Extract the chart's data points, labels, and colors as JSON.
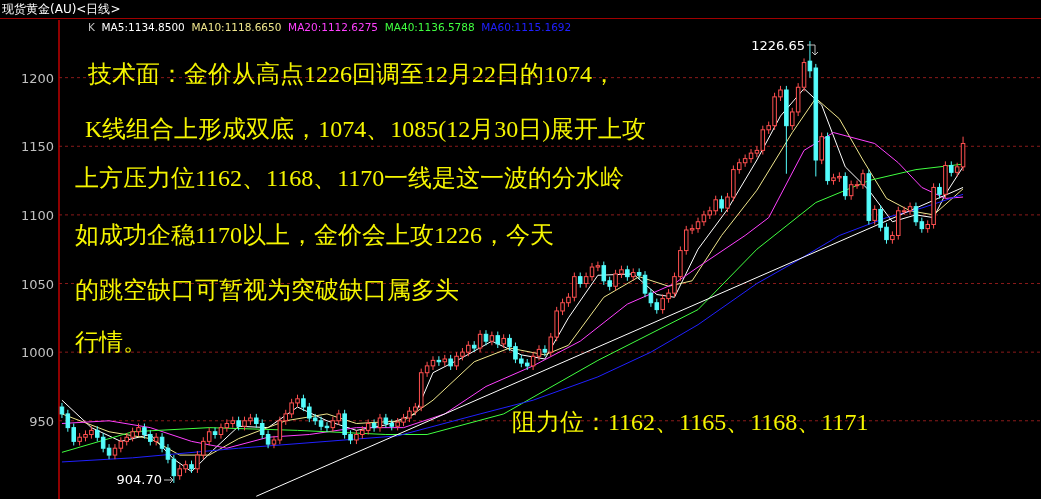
{
  "chart_data": {
    "type": "candlestick",
    "title": "现货黄金(AU)<日线>",
    "legend_title": "K",
    "legend": "top left",
    "grid": "y",
    "ylim": [
      893,
      1242
    ],
    "yticks": [
      950,
      1000,
      1050,
      1100,
      1150,
      1200
    ],
    "categories": [
      null,
      null,
      null,
      null,
      null,
      null,
      null,
      null,
      null,
      null,
      null,
      null,
      null,
      null,
      null,
      null,
      null,
      null,
      null,
      null,
      null,
      null,
      null,
      null,
      null,
      null,
      null,
      null,
      null,
      null,
      null,
      null,
      null,
      null,
      null,
      null,
      null,
      null,
      null,
      null,
      null,
      null,
      null,
      null,
      null,
      null,
      null,
      null,
      null,
      null,
      null,
      null,
      null,
      null,
      null,
      null,
      null,
      null,
      null,
      null,
      null,
      null,
      null,
      null,
      null,
      null,
      null,
      null,
      null,
      null,
      null,
      null,
      null,
      null,
      null,
      null,
      null,
      null,
      null,
      null,
      null,
      null,
      null,
      null,
      null,
      null,
      null,
      null,
      null,
      null,
      null,
      null,
      null,
      null,
      null,
      null,
      null,
      null,
      null,
      null,
      null,
      null,
      null,
      null,
      null,
      null,
      null,
      null,
      null,
      null,
      null,
      null,
      null,
      null,
      null,
      null,
      null,
      null,
      null,
      null,
      null,
      null,
      null,
      null,
      null,
      null,
      null,
      null,
      null,
      null,
      null,
      null,
      null,
      null,
      null,
      null,
      null,
      null,
      null,
      null,
      null,
      null,
      null,
      null,
      null,
      null,
      null,
      null,
      null,
      null,
      null,
      null,
      null,
      null
    ],
    "ohlc": [
      [
        960,
        963,
        952,
        955
      ],
      [
        955,
        958,
        942,
        945
      ],
      [
        945,
        948,
        932,
        935
      ],
      [
        935,
        941,
        932,
        938
      ],
      [
        938,
        943,
        935,
        940
      ],
      [
        940,
        946,
        937,
        943
      ],
      [
        943,
        946,
        935,
        938
      ],
      [
        938,
        941,
        927,
        930
      ],
      [
        930,
        933,
        922,
        925
      ],
      [
        925,
        933,
        922,
        930
      ],
      [
        930,
        938,
        927,
        935
      ],
      [
        935,
        941,
        932,
        938
      ],
      [
        938,
        945,
        935,
        942
      ],
      [
        942,
        948,
        939,
        945
      ],
      [
        945,
        948,
        937,
        940
      ],
      [
        940,
        943,
        932,
        935
      ],
      [
        935,
        941,
        932,
        938
      ],
      [
        938,
        941,
        927,
        930
      ],
      [
        930,
        933,
        919,
        922
      ],
      [
        922,
        925,
        904.7,
        910
      ],
      [
        910,
        918,
        907,
        915
      ],
      [
        915,
        921,
        912,
        918
      ],
      [
        918,
        921,
        912,
        915
      ],
      [
        915,
        928,
        912,
        925
      ],
      [
        925,
        938,
        922,
        935
      ],
      [
        935,
        945,
        932,
        942
      ],
      [
        942,
        945,
        937,
        940
      ],
      [
        940,
        948,
        937,
        945
      ],
      [
        945,
        951,
        942,
        948
      ],
      [
        948,
        953,
        945,
        950
      ],
      [
        950,
        953,
        943,
        946
      ],
      [
        946,
        953,
        943,
        950
      ],
      [
        950,
        955,
        947,
        952
      ],
      [
        952,
        955,
        945,
        948
      ],
      [
        948,
        951,
        937,
        940
      ],
      [
        940,
        943,
        930,
        933
      ],
      [
        933,
        939,
        930,
        936
      ],
      [
        936,
        953,
        933,
        950
      ],
      [
        950,
        958,
        947,
        955
      ],
      [
        955,
        966,
        952,
        963
      ],
      [
        963,
        969,
        960,
        966
      ],
      [
        966,
        969,
        957,
        960
      ],
      [
        960,
        963,
        949,
        952
      ],
      [
        952,
        955,
        947,
        950
      ],
      [
        950,
        953,
        943,
        946
      ],
      [
        946,
        949,
        942,
        945
      ],
      [
        945,
        953,
        942,
        950
      ],
      [
        950,
        958,
        947,
        955
      ],
      [
        955,
        958,
        937,
        940
      ],
      [
        940,
        943,
        933,
        936
      ],
      [
        936,
        943,
        933,
        940
      ],
      [
        940,
        946,
        937,
        943
      ],
      [
        943,
        951,
        940,
        948
      ],
      [
        948,
        951,
        942,
        945
      ],
      [
        945,
        955,
        942,
        952
      ],
      [
        952,
        955,
        945,
        948
      ],
      [
        948,
        951,
        943,
        946
      ],
      [
        946,
        952,
        943,
        949
      ],
      [
        949,
        955,
        946,
        952
      ],
      [
        952,
        960,
        949,
        957
      ],
      [
        957,
        963,
        954,
        960
      ],
      [
        960,
        988,
        957,
        985
      ],
      [
        985,
        993,
        982,
        990
      ],
      [
        990,
        997,
        987,
        994
      ],
      [
        994,
        997,
        990,
        993
      ],
      [
        993,
        998,
        990,
        995
      ],
      [
        995,
        998,
        987,
        990
      ],
      [
        990,
        1000,
        987,
        997
      ],
      [
        997,
        1003,
        994,
        1000
      ],
      [
        1000,
        1008,
        997,
        1005
      ],
      [
        1005,
        1008,
        1000,
        1003
      ],
      [
        1003,
        1016,
        1000,
        1013
      ],
      [
        1013,
        1016,
        1005,
        1008
      ],
      [
        1008,
        1015,
        1005,
        1012
      ],
      [
        1012,
        1015,
        1003,
        1006
      ],
      [
        1006,
        1013,
        1003,
        1010
      ],
      [
        1010,
        1013,
        1001,
        1004
      ],
      [
        1004,
        1007,
        992,
        995
      ],
      [
        995,
        998,
        989,
        992
      ],
      [
        992,
        995,
        987,
        990
      ],
      [
        990,
        1000,
        987,
        997
      ],
      [
        997,
        1005,
        994,
        1002
      ],
      [
        1002,
        1005,
        997,
        1000
      ],
      [
        1000,
        1014,
        997,
        1011
      ],
      [
        1011,
        1033,
        1008,
        1030
      ],
      [
        1030,
        1039,
        1027,
        1036
      ],
      [
        1036,
        1043,
        1033,
        1040
      ],
      [
        1040,
        1058,
        1037,
        1055
      ],
      [
        1055,
        1058,
        1047,
        1050
      ],
      [
        1050,
        1058,
        1047,
        1055
      ],
      [
        1055,
        1065,
        1052,
        1062
      ],
      [
        1062,
        1066,
        1059,
        1063
      ],
      [
        1063,
        1066,
        1049,
        1052
      ],
      [
        1052,
        1055,
        1045,
        1048
      ],
      [
        1048,
        1060,
        1045,
        1057
      ],
      [
        1057,
        1063,
        1054,
        1060
      ],
      [
        1060,
        1063,
        1052,
        1055
      ],
      [
        1055,
        1061,
        1052,
        1058
      ],
      [
        1058,
        1061,
        1053,
        1056
      ],
      [
        1056,
        1059,
        1040,
        1043
      ],
      [
        1043,
        1046,
        1033,
        1036
      ],
      [
        1036,
        1039,
        1028,
        1031
      ],
      [
        1031,
        1042,
        1028,
        1039
      ],
      [
        1039,
        1046,
        1036,
        1043
      ],
      [
        1043,
        1058,
        1040,
        1055
      ],
      [
        1055,
        1077,
        1052,
        1074
      ],
      [
        1074,
        1092,
        1071,
        1089
      ],
      [
        1089,
        1093,
        1086,
        1090
      ],
      [
        1090,
        1098,
        1087,
        1095
      ],
      [
        1095,
        1103,
        1092,
        1100
      ],
      [
        1100,
        1106,
        1097,
        1103
      ],
      [
        1103,
        1114,
        1100,
        1111
      ],
      [
        1111,
        1114,
        1102,
        1105
      ],
      [
        1105,
        1116,
        1102,
        1113
      ],
      [
        1113,
        1136,
        1110,
        1133
      ],
      [
        1133,
        1141,
        1130,
        1138
      ],
      [
        1138,
        1144,
        1135,
        1141
      ],
      [
        1141,
        1148,
        1138,
        1145
      ],
      [
        1145,
        1150,
        1142,
        1147
      ],
      [
        1147,
        1165,
        1144,
        1162
      ],
      [
        1162,
        1168,
        1159,
        1165
      ],
      [
        1165,
        1189,
        1162,
        1186
      ],
      [
        1186,
        1194,
        1183,
        1191
      ],
      [
        1191,
        1194,
        1130,
        1165
      ],
      [
        1165,
        1178,
        1162,
        1175
      ],
      [
        1175,
        1196,
        1172,
        1193
      ],
      [
        1193,
        1214,
        1190,
        1211
      ],
      [
        1212,
        1226.65,
        1200,
        1205
      ],
      [
        1207,
        1210,
        1128,
        1140
      ],
      [
        1140,
        1160,
        1137,
        1157
      ],
      [
        1157,
        1160,
        1122,
        1125
      ],
      [
        1125,
        1130,
        1122,
        1127
      ],
      [
        1127,
        1131,
        1124,
        1128
      ],
      [
        1128,
        1131,
        1111,
        1114
      ],
      [
        1114,
        1125,
        1111,
        1122
      ],
      [
        1122,
        1125,
        1119,
        1122
      ],
      [
        1122,
        1133,
        1119,
        1130
      ],
      [
        1130,
        1133,
        1093,
        1096
      ],
      [
        1096,
        1107,
        1093,
        1104
      ],
      [
        1104,
        1107,
        1088,
        1091
      ],
      [
        1091,
        1094,
        1079,
        1082
      ],
      [
        1082,
        1088,
        1079,
        1085
      ],
      [
        1085,
        1106,
        1082,
        1103
      ],
      [
        1103,
        1106,
        1100,
        1103
      ],
      [
        1103,
        1109,
        1100,
        1106
      ],
      [
        1106,
        1109,
        1092,
        1095
      ],
      [
        1095,
        1098,
        1087,
        1090
      ],
      [
        1090,
        1096,
        1087,
        1093
      ],
      [
        1093,
        1123,
        1090,
        1120
      ],
      [
        1120,
        1123,
        1112,
        1115
      ],
      [
        1115,
        1139,
        1112,
        1136
      ],
      [
        1136,
        1139,
        1128,
        1131
      ],
      [
        1131,
        1138,
        1128,
        1135
      ],
      [
        1135,
        1157,
        1132,
        1152
      ]
    ],
    "series": [
      {
        "type": "line",
        "name": "MA5:1134.8500",
        "color": "#ffffff",
        "values": [
          965,
          null,
          null,
          null,
          null,
          945,
          null,
          null,
          null,
          null,
          935,
          null,
          null,
          null,
          null,
          940,
          null,
          null,
          null,
          922,
          null,
          null,
          913,
          null,
          null,
          null,
          930,
          null,
          null,
          null,
          946,
          null,
          null,
          null,
          null,
          945,
          null,
          null,
          null,
          null,
          960,
          null,
          null,
          null,
          null,
          950,
          null,
          null,
          null,
          null,
          943,
          null,
          null,
          null,
          null,
          947,
          null,
          null,
          null,
          null,
          955,
          null,
          null,
          985,
          null,
          null,
          null,
          null,
          996,
          null,
          null,
          null,
          null,
          1008,
          null,
          null,
          null,
          null,
          998,
          null,
          null,
          null,
          995,
          null,
          null,
          null,
          1025,
          null,
          null,
          null,
          null,
          1056,
          null,
          null,
          null,
          null,
          null,
          1057,
          null,
          null,
          null,
          1042,
          null,
          null,
          1040,
          null,
          null,
          null,
          1075,
          null,
          null,
          null,
          null,
          1104,
          null,
          null,
          null,
          null,
          1140,
          null,
          null,
          null,
          1172,
          null,
          null,
          null,
          1192,
          null,
          null,
          1180,
          null,
          null,
          null,
          1135,
          null,
          null,
          null,
          1118,
          null,
          null,
          null,
          1095,
          null,
          null,
          null,
          1100,
          null,
          null,
          1098,
          null,
          1115,
          null,
          null,
          1135
        ]
      },
      {
        "type": "line",
        "name": "MA10:1118.6650",
        "color": "#f0e68c",
        "values": [
          955,
          null,
          null,
          null,
          null,
          null,
          null,
          null,
          942,
          null,
          null,
          null,
          null,
          null,
          null,
          937,
          null,
          null,
          null,
          null,
          925,
          null,
          null,
          null,
          null,
          925,
          null,
          null,
          null,
          null,
          937,
          null,
          null,
          null,
          null,
          null,
          null,
          null,
          950,
          null,
          null,
          null,
          null,
          null,
          null,
          955,
          null,
          null,
          null,
          null,
          948,
          null,
          null,
          null,
          null,
          null,
          null,
          null,
          950,
          null,
          null,
          null,
          null,
          965,
          null,
          null,
          null,
          null,
          null,
          null,
          993,
          null,
          null,
          null,
          null,
          null,
          1003,
          null,
          null,
          null,
          null,
          null,
          998,
          null,
          null,
          null,
          1005,
          null,
          null,
          null,
          null,
          null,
          1040,
          null,
          null,
          null,
          null,
          null,
          1055,
          null,
          null,
          null,
          null,
          1048,
          null,
          null,
          null,
          1052,
          null,
          null,
          null,
          null,
          1085,
          null,
          null,
          null,
          null,
          null,
          1118,
          null,
          null,
          null,
          null,
          null,
          1160,
          null,
          null,
          null,
          1185,
          null,
          null,
          null,
          1170,
          null,
          null,
          null,
          1140,
          null,
          null,
          null,
          1112,
          null,
          null,
          null,
          1103,
          null,
          null,
          null,
          1100,
          null,
          null,
          null,
          null,
          1119
        ]
      },
      {
        "type": "line",
        "name": "MA20:1112.6275",
        "color": "#ff40ff",
        "values": [
          948,
          null,
          null,
          null,
          null,
          null,
          null,
          null,
          950,
          null,
          null,
          null,
          null,
          null,
          null,
          945,
          null,
          null,
          null,
          null,
          null,
          null,
          935,
          null,
          null,
          null,
          null,
          null,
          930,
          null,
          null,
          null,
          null,
          null,
          null,
          938,
          null,
          null,
          null,
          null,
          null,
          null,
          940,
          null,
          null,
          null,
          null,
          null,
          null,
          null,
          945,
          null,
          null,
          null,
          null,
          null,
          null,
          null,
          945,
          null,
          null,
          null,
          null,
          null,
          null,
          955,
          null,
          null,
          null,
          null,
          null,
          null,
          975,
          null,
          null,
          null,
          null,
          null,
          null,
          null,
          990,
          null,
          null,
          null,
          null,
          null,
          null,
          null,
          1008,
          null,
          null,
          null,
          null,
          null,
          null,
          null,
          1035,
          null,
          null,
          null,
          null,
          null,
          null,
          null,
          1050,
          null,
          null,
          null,
          1062,
          null,
          null,
          null,
          null,
          null,
          null,
          null,
          1085,
          null,
          null,
          null,
          1098,
          null,
          null,
          null,
          null,
          null,
          1147,
          null,
          null,
          null,
          null,
          1160,
          null,
          null,
          null,
          null,
          null,
          null,
          1152,
          null,
          null,
          null,
          1138,
          null,
          null,
          null,
          1120,
          null,
          null,
          null,
          1112,
          null,
          null,
          1113
        ]
      },
      {
        "type": "line",
        "name": "MA40:1136.5788",
        "color": "#40ff40",
        "values": [
          927,
          null,
          null,
          null,
          null,
          null,
          null,
          null,
          null,
          null,
          null,
          null,
          942,
          null,
          null,
          null,
          null,
          null,
          null,
          null,
          null,
          null,
          null,
          null,
          null,
          945,
          null,
          null,
          null,
          null,
          null,
          null,
          null,
          null,
          null,
          null,
          null,
          null,
          null,
          null,
          943,
          null,
          null,
          null,
          null,
          null,
          null,
          null,
          null,
          null,
          null,
          null,
          null,
          null,
          null,
          940,
          null,
          null,
          null,
          null,
          null,
          null,
          940,
          null,
          null,
          null,
          null,
          null,
          null,
          null,
          null,
          null,
          null,
          null,
          null,
          955,
          null,
          null,
          null,
          null,
          null,
          null,
          null,
          null,
          null,
          null,
          null,
          null,
          null,
          null,
          null,
          994,
          null,
          null,
          null,
          null,
          null,
          null,
          null,
          null,
          null,
          null,
          null,
          null,
          null,
          null,
          null,
          null,
          1031,
          null,
          null,
          null,
          null,
          null,
          null,
          null,
          null,
          null,
          1075,
          null,
          null,
          null,
          null,
          null,
          null,
          null,
          null,
          null,
          1109,
          null,
          null,
          null,
          null,
          null,
          null,
          null,
          null,
          1125,
          null,
          null,
          null,
          null,
          null,
          null,
          null,
          1133,
          null,
          null,
          null,
          null,
          null,
          null,
          null,
          1137
        ]
      },
      {
        "type": "line",
        "name": "MA60:1115.1692",
        "color": "#2020ff",
        "values": [
          920,
          null,
          null,
          null,
          null,
          null,
          null,
          null,
          null,
          null,
          null,
          null,
          923,
          null,
          null,
          null,
          null,
          null,
          null,
          null,
          null,
          null,
          null,
          null,
          null,
          null,
          null,
          null,
          null,
          null,
          930,
          null,
          null,
          null,
          null,
          null,
          null,
          null,
          null,
          null,
          null,
          null,
          null,
          null,
          null,
          935,
          null,
          null,
          null,
          null,
          null,
          null,
          null,
          null,
          null,
          null,
          null,
          939,
          null,
          null,
          null,
          null,
          null,
          null,
          null,
          null,
          null,
          null,
          null,
          null,
          null,
          955,
          null,
          null,
          null,
          null,
          null,
          null,
          null,
          null,
          965,
          null,
          null,
          null,
          null,
          null,
          null,
          null,
          null,
          null,
          null,
          982,
          null,
          null,
          null,
          null,
          null,
          null,
          null,
          null,
          1000,
          null,
          null,
          null,
          null,
          null,
          null,
          null,
          1020,
          null,
          null,
          null,
          null,
          null,
          null,
          null,
          null,
          null,
          1050,
          null,
          null,
          null,
          null,
          null,
          null,
          1067,
          null,
          null,
          null,
          null,
          null,
          null,
          1085,
          null,
          null,
          null,
          null,
          null,
          null,
          null,
          1098,
          null,
          null,
          null,
          null,
          null,
          1105,
          null,
          null,
          null,
          null,
          null,
          null,
          1115
        ]
      },
      {
        "type": "line",
        "color": "#ffffff",
        "values": [
          null,
          null,
          null,
          null,
          null,
          null,
          null,
          null,
          null,
          null,
          null,
          null,
          null,
          null,
          null,
          null,
          null,
          null,
          null,
          null,
          null,
          null,
          null,
          null,
          null,
          null,
          null,
          null,
          null,
          null,
          null,
          null,
          null,
          895,
          null,
          null,
          null,
          null,
          null,
          null,
          null,
          null,
          null,
          null,
          null,
          null,
          null,
          null,
          null,
          null,
          null,
          null,
          null,
          null,
          null,
          null,
          null,
          null,
          null,
          null,
          null,
          null,
          null,
          null,
          null,
          null,
          null,
          null,
          null,
          null,
          null,
          null,
          null,
          null,
          null,
          null,
          null,
          null,
          null,
          null,
          null,
          null,
          null,
          null,
          null,
          null,
          null,
          null,
          null,
          null,
          null,
          null,
          null,
          null,
          null,
          null,
          null,
          null,
          null,
          null,
          null,
          null,
          null,
          null,
          null,
          null,
          null,
          null,
          null,
          null,
          null,
          null,
          null,
          null,
          null,
          null,
          null,
          null,
          null,
          null,
          null,
          null,
          null,
          null,
          null,
          null,
          null,
          null,
          null,
          null,
          null,
          null,
          null,
          null,
          null,
          null,
          null,
          null,
          null,
          null,
          null,
          null,
          null,
          null,
          null,
          null,
          null,
          null,
          null,
          null,
          null,
          null,
          null,
          1120
        ]
      }
    ],
    "annotations": [
      "技术面：金价从高点1226回调至12月22日的1074，",
      "K线组合上形成双底，1074、1085(12月30日)展开上攻",
      "上方压力位1162、1168、1170一线是这一波的分水岭",
      "如成功企稳1170以上，金价会上攻1226，今天",
      "的跳空缺口可暂视为突破缺口属多头",
      "行情。",
      "阻力位：1162、1165、1168、1171",
      "904.70",
      "1226.65"
    ]
  }
}
